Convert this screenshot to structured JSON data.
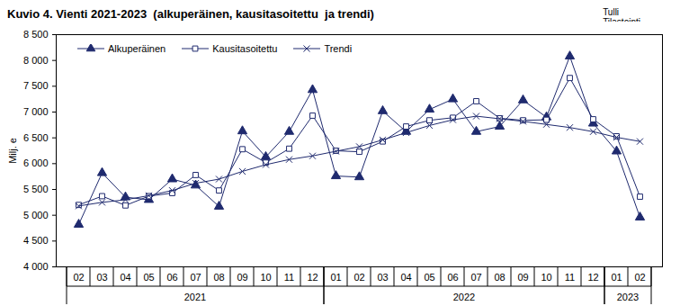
{
  "chart_data": {
    "type": "line",
    "title": "Kuvio 4. Vienti 2021-2023  (alkuperäinen, kausitasoitettu  ja trendi)",
    "source": [
      "Tulli",
      "Tilastointi"
    ],
    "y_label": "Milj. e",
    "categories": [
      "02",
      "03",
      "04",
      "05",
      "06",
      "07",
      "08",
      "09",
      "10",
      "11",
      "12",
      "01",
      "02",
      "03",
      "04",
      "05",
      "06",
      "07",
      "08",
      "09",
      "10",
      "11",
      "12",
      "01",
      "02"
    ],
    "groups": [
      {
        "label": "2021",
        "months": 11
      },
      {
        "label": "2022",
        "months": 12
      },
      {
        "label": "2023",
        "months": 2
      }
    ],
    "series": [
      {
        "name": "Alkuperäinen",
        "color": "#1f2a6e",
        "marker": "triangle",
        "values": [
          4820,
          5820,
          5350,
          5300,
          5700,
          5580,
          5170,
          6630,
          6130,
          6620,
          7430,
          5760,
          5740,
          7020,
          6620,
          7050,
          7250,
          6620,
          6720,
          7230,
          6900,
          8080,
          6780,
          6240,
          4960
        ]
      },
      {
        "name": "Kausitasoitettu",
        "color": "#1f2a6e",
        "marker": "square",
        "values": [
          5200,
          5370,
          5190,
          5370,
          5430,
          5780,
          5480,
          6280,
          6020,
          6290,
          6930,
          6250,
          6230,
          6430,
          6720,
          6840,
          6890,
          7210,
          6880,
          6840,
          6850,
          7660,
          6860,
          6530,
          5360
        ]
      },
      {
        "name": "Trendi",
        "color": "#1f2a6e",
        "marker": "times",
        "values": [
          5180,
          5250,
          5300,
          5380,
          5480,
          5620,
          5700,
          5850,
          5980,
          6080,
          6150,
          6240,
          6330,
          6460,
          6600,
          6740,
          6850,
          6920,
          6870,
          6820,
          6760,
          6700,
          6620,
          6510,
          6430
        ]
      }
    ],
    "ylim": [
      4000,
      8500
    ],
    "yticks": [
      {
        "value": 4000,
        "label": "4 000"
      },
      {
        "value": 4500,
        "label": "4 500"
      },
      {
        "value": 5000,
        "label": "5 000"
      },
      {
        "value": 5500,
        "label": "5 500"
      },
      {
        "value": 6000,
        "label": "6 000"
      },
      {
        "value": 6500,
        "label": "6 500"
      },
      {
        "value": 7000,
        "label": "7 000"
      },
      {
        "value": 7500,
        "label": "7 500"
      },
      {
        "value": 8000,
        "label": "8 000"
      },
      {
        "value": 8500,
        "label": "8 500"
      }
    ],
    "grid": false,
    "legend": "top-left"
  }
}
